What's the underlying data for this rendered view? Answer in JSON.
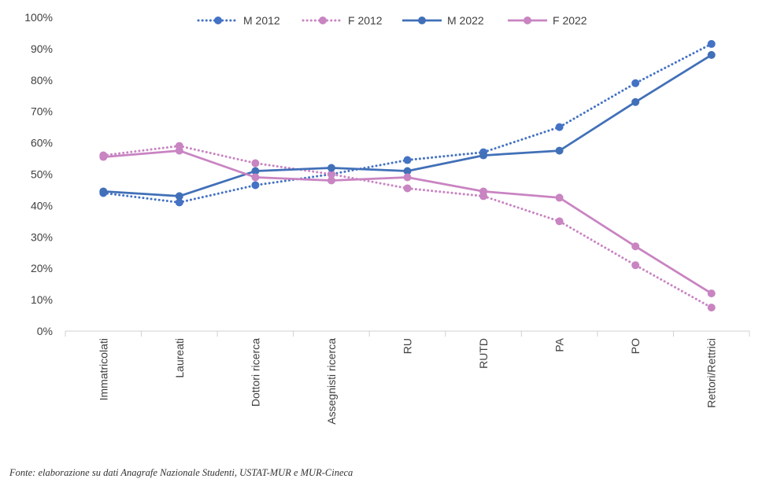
{
  "chart_data": {
    "type": "line",
    "categories": [
      "Immatricolati",
      "Laureati",
      "Dottori ricerca",
      "Assegnisti ricerca",
      "RU",
      "RUTD",
      "PA",
      "PO",
      "Rettori/Rettrici"
    ],
    "y_ticks": [
      "0%",
      "10%",
      "20%",
      "30%",
      "40%",
      "50%",
      "60%",
      "70%",
      "80%",
      "90%",
      "100%"
    ],
    "ylim": [
      0,
      100
    ],
    "grid": false,
    "legend_position": "top",
    "series": [
      {
        "name": "M 2012",
        "style": "dotted",
        "color": "#4472C4",
        "values": [
          44,
          41,
          46.5,
          50,
          54.5,
          57,
          65,
          79,
          91.5
        ]
      },
      {
        "name": "F 2012",
        "style": "dotted",
        "color": "#C984C2",
        "values": [
          56,
          59,
          53.5,
          50,
          45.5,
          43,
          35,
          21,
          7.5
        ]
      },
      {
        "name": "M 2022",
        "style": "solid",
        "color": "#4170B8",
        "values": [
          44.5,
          43,
          51,
          52,
          51,
          56,
          57.5,
          73,
          88
        ]
      },
      {
        "name": "F 2022",
        "style": "solid",
        "color": "#C984C2",
        "values": [
          55.5,
          57.5,
          49,
          48,
          49,
          44.5,
          42.5,
          27,
          12
        ]
      }
    ]
  },
  "source_note": "Fonte: elaborazione su dati Anagrafe Nazionale Studenti, USTAT-MUR e MUR-Cineca"
}
